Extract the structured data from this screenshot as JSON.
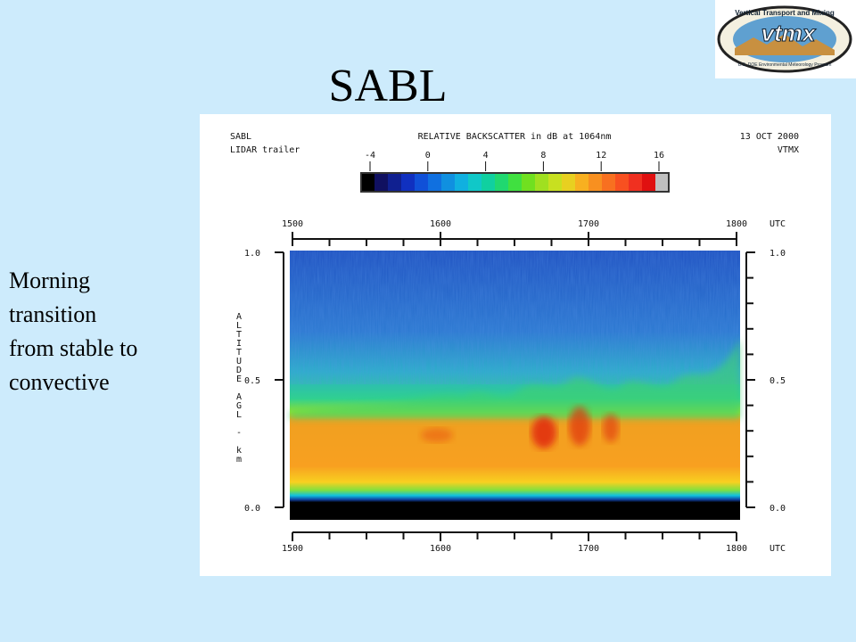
{
  "slide": {
    "title": "SABL",
    "side_text": [
      "Morning",
      "transition",
      "from stable to",
      "convective"
    ],
    "logo": {
      "top": "Vertical Transport and Mixing",
      "name": "vtmx",
      "bottom": "U.S. DOE Environmental Meteorology Program"
    },
    "figure": {
      "site": "SABL",
      "instrument": "LIDAR trailer",
      "colorbar_title": "RELATIVE BACKSCATTER in dB at 1064nm",
      "colorbar_ticks": [
        "-4",
        "0",
        "4",
        "8",
        "12",
        "16"
      ],
      "date": "13 OCT 2000",
      "campaign": "VTMX",
      "x_ticks": [
        "1500",
        "1600",
        "1700",
        "1800"
      ],
      "x_unit": "UTC",
      "y_ticks": [
        "1.0",
        "0.5",
        "0.0"
      ],
      "y_label": "ALTITUDE AGL - km"
    }
  }
}
